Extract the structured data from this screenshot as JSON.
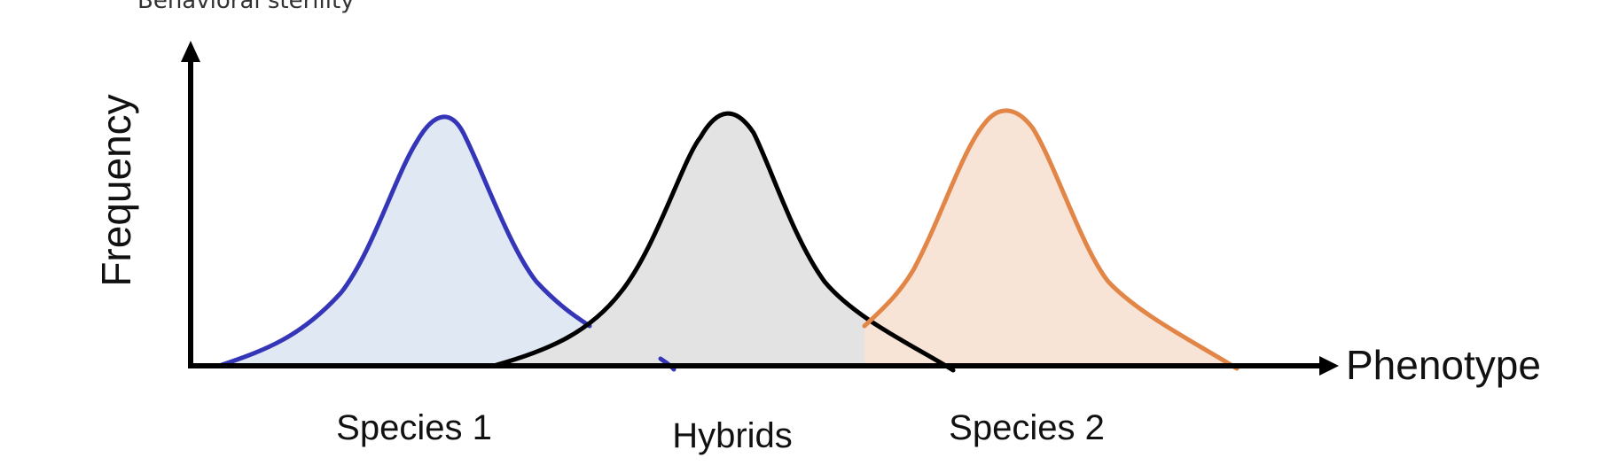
{
  "caption": "Behavioral sterility",
  "y_axis_label": "Frequency",
  "x_axis_label": "Phenotype",
  "curves": [
    {
      "label": "Species 1",
      "stroke": "#3535b8",
      "fill": "#dfe8f3"
    },
    {
      "label": "Hybrids",
      "stroke": "#000000",
      "fill": "#e3e3e3"
    },
    {
      "label": "Species 2",
      "stroke": "#e28648",
      "fill": "#f8e4d6"
    }
  ],
  "colors": {
    "axis": "#000000",
    "background": "#ffffff"
  }
}
